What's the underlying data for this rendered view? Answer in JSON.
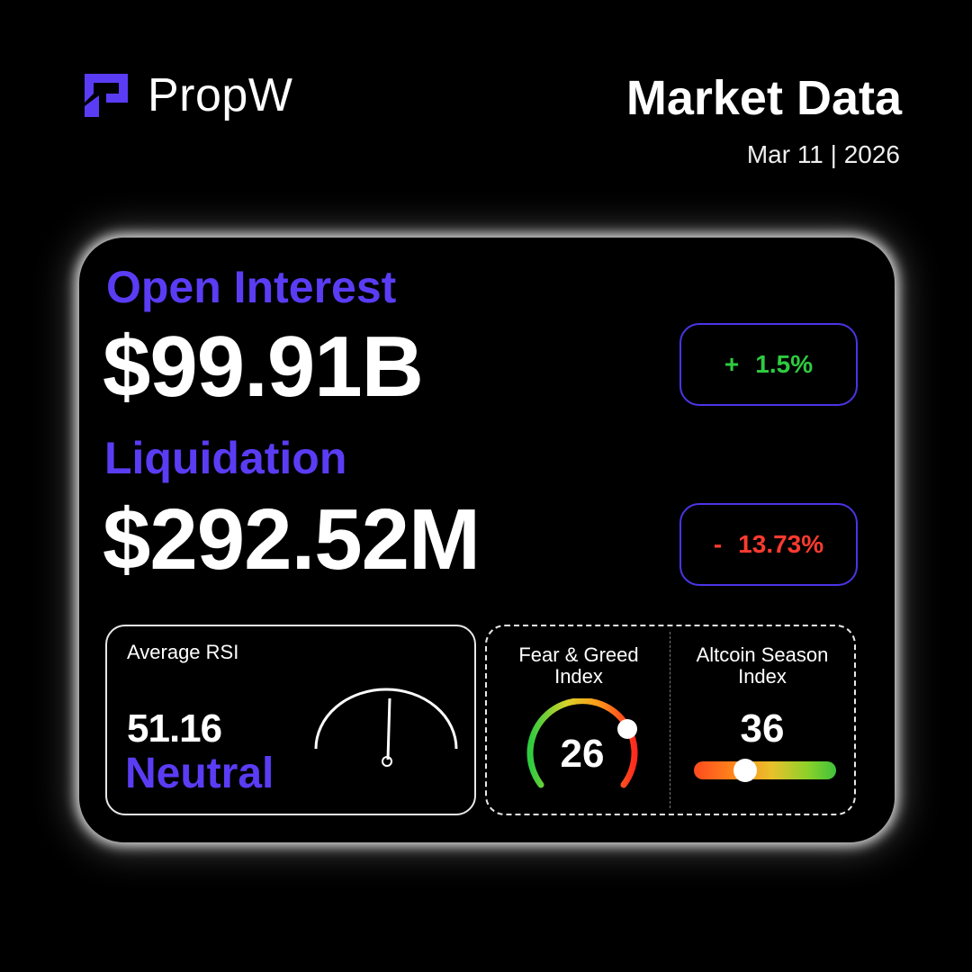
{
  "header": {
    "brand": "PropW",
    "title": "Market Data",
    "date": "Mar 11 | 2026",
    "logo_icon": "propw-logo-icon",
    "accent_color": "#5b3cf5"
  },
  "open_interest": {
    "label": "Open Interest",
    "value": "$99.91B",
    "change_sign": "+",
    "change_value": "1.5%",
    "change_color": "#2ecc40"
  },
  "liquidation": {
    "label": "Liquidation",
    "value": "$292.52M",
    "change_sign": "-",
    "change_value": "13.73%",
    "change_color": "#ff3b2f"
  },
  "rsi": {
    "title": "Average RSI",
    "value": "51.16",
    "state": "Neutral",
    "gauge_icon": "needle-gauge-icon"
  },
  "fear_greed": {
    "title_line1": "Fear & Greed",
    "title_line2": "Index",
    "value": "26"
  },
  "altcoin_season": {
    "title_line1": "Altcoin Season",
    "title_line2": "Index",
    "value": "36",
    "level": 0.36
  }
}
